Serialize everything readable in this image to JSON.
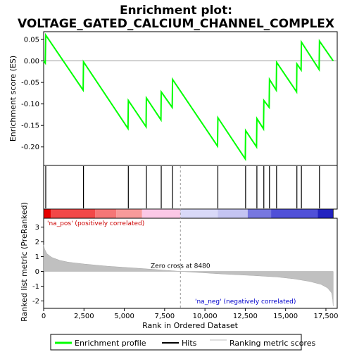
{
  "chart_data": {
    "type": "line",
    "title_line1": "Enrichment plot:",
    "title_line2": "VOLTAGE_GATED_CALCIUM_CHANNEL_COMPLEX",
    "x_axis": {
      "label": "Rank in Ordered Dataset",
      "range": [
        0,
        18200
      ],
      "ticks": [
        0,
        2500,
        5000,
        7500,
        10000,
        12500,
        15000,
        17500
      ],
      "tick_labels": [
        "0",
        "2,500",
        "5,000",
        "7,500",
        "10,000",
        "12,500",
        "15,000",
        "17,500"
      ]
    },
    "es_panel": {
      "ylabel": "Enrichment score (ES)",
      "ylim": [
        -0.243,
        0.068
      ],
      "ticks": [
        0.05,
        0.0,
        -0.05,
        -0.1,
        -0.15,
        -0.2
      ],
      "tick_labels": [
        "0.05",
        "0.00",
        "-0.05",
        "-0.10",
        "-0.15",
        "-0.20"
      ],
      "series_name": "Enrichment profile",
      "color": "#00ff00",
      "points": [
        [
          0,
          0.0
        ],
        [
          100,
          -0.005
        ],
        [
          130,
          0.06
        ],
        [
          2450,
          -0.068
        ],
        [
          2470,
          -0.002
        ],
        [
          5230,
          -0.157
        ],
        [
          5250,
          -0.092
        ],
        [
          6350,
          -0.153
        ],
        [
          6370,
          -0.086
        ],
        [
          7270,
          -0.137
        ],
        [
          7290,
          -0.072
        ],
        [
          7970,
          -0.108
        ],
        [
          7990,
          -0.043
        ],
        [
          10780,
          -0.198
        ],
        [
          10800,
          -0.132
        ],
        [
          12500,
          -0.228
        ],
        [
          12520,
          -0.162
        ],
        [
          13200,
          -0.2
        ],
        [
          13220,
          -0.134
        ],
        [
          13630,
          -0.158
        ],
        [
          13650,
          -0.092
        ],
        [
          13980,
          -0.108
        ],
        [
          14000,
          -0.043
        ],
        [
          14420,
          -0.068
        ],
        [
          14440,
          -0.003
        ],
        [
          15680,
          -0.072
        ],
        [
          15700,
          -0.007
        ],
        [
          15960,
          -0.021
        ],
        [
          15980,
          0.044
        ],
        [
          17080,
          -0.02
        ],
        [
          17100,
          0.046
        ],
        [
          17950,
          0.0
        ]
      ]
    },
    "hits": [
      130,
      2470,
      5250,
      6370,
      7290,
      7990,
      10800,
      12520,
      13220,
      13650,
      14000,
      14440,
      15700,
      15980,
      17100
    ],
    "hits_name": "Hits",
    "rank_bar": {
      "segments": [
        {
          "from": 0,
          "to": 450,
          "color": "#e60000"
        },
        {
          "from": 450,
          "to": 3200,
          "color": "#f24848"
        },
        {
          "from": 3200,
          "to": 4500,
          "color": "#f57676"
        },
        {
          "from": 4500,
          "to": 6100,
          "color": "#f89a9a"
        },
        {
          "from": 6100,
          "to": 8480,
          "color": "#fbc8e6"
        },
        {
          "from": 8480,
          "to": 10800,
          "color": "#d9d9f8"
        },
        {
          "from": 10800,
          "to": 12650,
          "color": "#c4c4f2"
        },
        {
          "from": 12650,
          "to": 14100,
          "color": "#7777e0"
        },
        {
          "from": 14100,
          "to": 17000,
          "color": "#5050d8"
        },
        {
          "from": 17000,
          "to": 17950,
          "color": "#2222c0"
        }
      ]
    },
    "metric_panel": {
      "ylabel": "Ranked list metric (PreRanked)",
      "ylim": [
        -2.5,
        3.6
      ],
      "ticks": [
        3,
        2,
        1,
        0,
        -1,
        -2
      ],
      "tick_labels": [
        "3",
        "2",
        "1",
        "0",
        "-1",
        "-2"
      ],
      "series_name": "Ranking metric scores",
      "color": "#c0c0c0",
      "profile": [
        [
          0,
          1.8
        ],
        [
          60,
          1.5
        ],
        [
          200,
          1.2
        ],
        [
          500,
          0.95
        ],
        [
          1000,
          0.75
        ],
        [
          1500,
          0.63
        ],
        [
          2500,
          0.5
        ],
        [
          4000,
          0.35
        ],
        [
          6000,
          0.2
        ],
        [
          8480,
          0.0
        ],
        [
          11000,
          -0.17
        ],
        [
          13000,
          -0.28
        ],
        [
          14500,
          -0.38
        ],
        [
          15500,
          -0.5
        ],
        [
          16500,
          -0.68
        ],
        [
          17200,
          -0.88
        ],
        [
          17600,
          -1.12
        ],
        [
          17850,
          -1.45
        ],
        [
          17920,
          -1.9
        ],
        [
          17950,
          -2.35
        ]
      ],
      "zero_cross_label": "Zero cross at 8480",
      "zero_cross_x": 8480,
      "pos_label": "'na_pos' (positively correlated)",
      "neg_label": "'na_neg' (negatively correlated)",
      "pos_color": "#cc0000",
      "neg_color": "#0000cc"
    }
  },
  "legend": {
    "items": [
      {
        "label": "Enrichment profile",
        "color": "#00ff00"
      },
      {
        "label": "Hits",
        "color": "#000000"
      },
      {
        "label": "Ranking metric scores",
        "color": "#c0c0c0"
      }
    ]
  }
}
